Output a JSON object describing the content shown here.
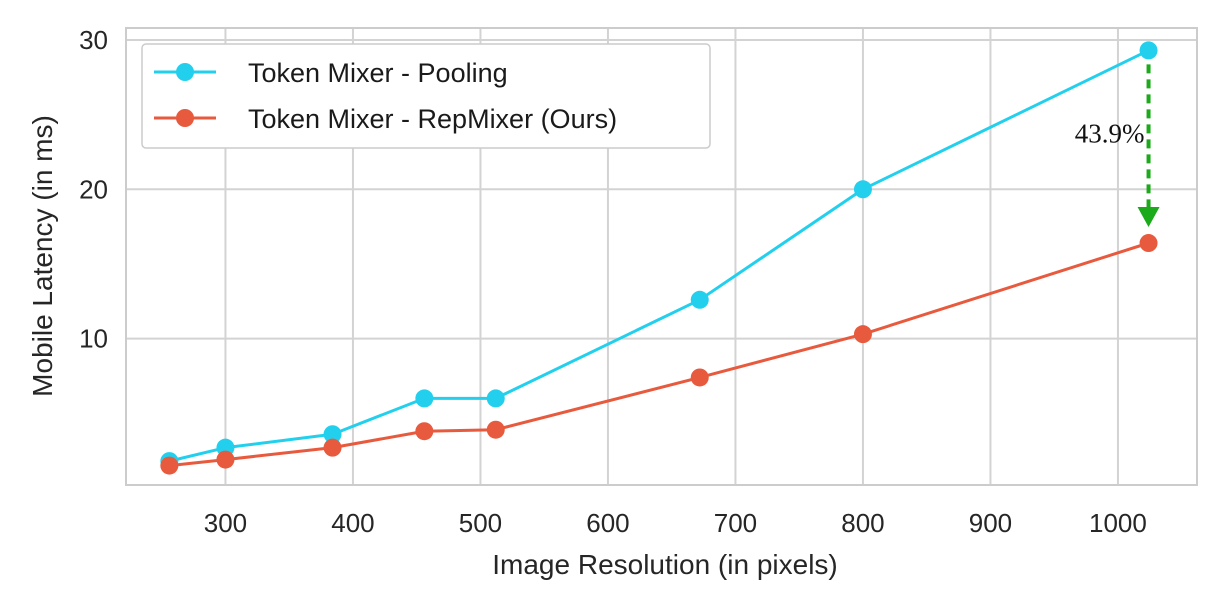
{
  "chart_data": {
    "type": "line",
    "title": "",
    "xlabel": "Image Resolution (in pixels)",
    "ylabel": "Mobile Latency (in ms)",
    "xlim": [
      222,
      1062
    ],
    "ylim": [
      0.2,
      30.8
    ],
    "xticks": [
      300,
      400,
      500,
      600,
      700,
      800,
      900,
      1000
    ],
    "yticks": [
      10,
      20,
      30
    ],
    "grid": true,
    "legend_position": "top-left",
    "series": [
      {
        "name": "Token Mixer - Pooling",
        "color": "#22d0ee",
        "x": [
          256,
          300,
          384,
          456,
          512,
          672,
          800,
          1024
        ],
        "y": [
          1.8,
          2.7,
          3.6,
          6.0,
          6.0,
          12.6,
          20.0,
          29.3
        ]
      },
      {
        "name": "Token Mixer - RepMixer (Ours)",
        "color": "#e85a3e",
        "x": [
          256,
          300,
          384,
          456,
          512,
          672,
          800,
          1024
        ],
        "y": [
          1.5,
          1.9,
          2.7,
          3.8,
          3.9,
          7.4,
          10.3,
          16.4
        ]
      }
    ],
    "annotations": [
      {
        "text": "43.9%",
        "type": "arrow",
        "color": "#1aaa1a",
        "x": 1024,
        "from_y": 29.3,
        "to_y": 16.4
      }
    ]
  }
}
